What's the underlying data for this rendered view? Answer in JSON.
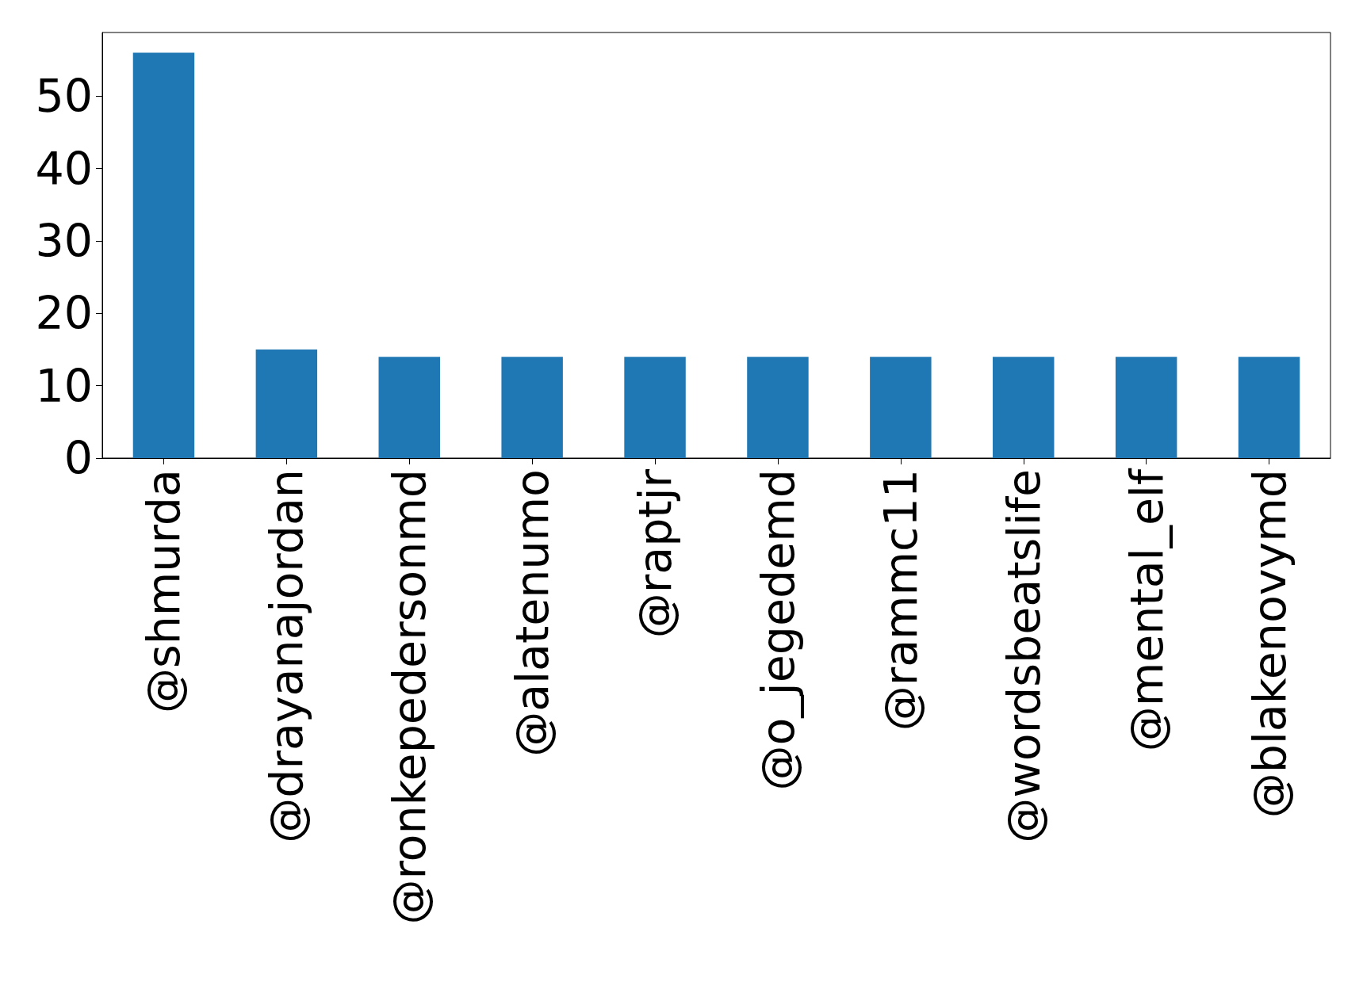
{
  "chart_data": {
    "type": "bar",
    "categories": [
      "@shmurda",
      "@drayanajordan",
      "@ronkepedersonmd",
      "@alatenumo",
      "@raptjr",
      "@o_jegedemd",
      "@rammc11",
      "@wordsbeatslife",
      "@mental_elf",
      "@blakenovymd"
    ],
    "values": [
      56,
      15,
      14,
      14,
      14,
      14,
      14,
      14,
      14,
      14
    ],
    "color": "#1f77b4",
    "ylim": [
      0,
      58.8
    ],
    "yticks": [
      0,
      10,
      20,
      30,
      40,
      50
    ],
    "grid": false
  }
}
